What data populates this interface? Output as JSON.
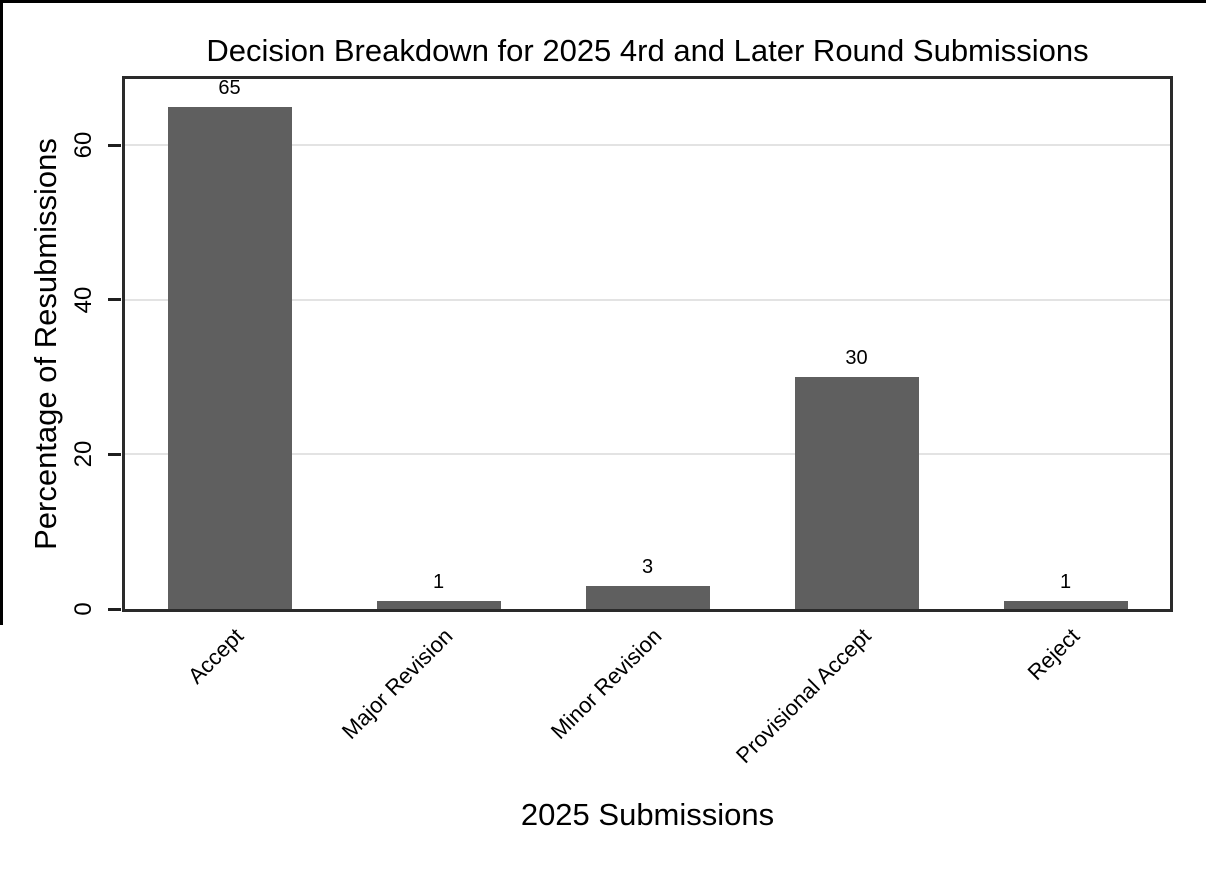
{
  "chart_data": {
    "type": "bar",
    "title": "Decision Breakdown for 2025 4rd and Later Round Submissions",
    "xlabel": "2025 Submissions",
    "ylabel": "Percentage of Resubmissions",
    "categories": [
      "Accept",
      "Major Revision",
      "Minor Revision",
      "Provisional Accept",
      "Reject"
    ],
    "values": [
      65,
      1,
      3,
      30,
      1
    ],
    "bar_labels": [
      "65",
      "1",
      "3",
      "30",
      "1"
    ],
    "yticks": [
      0,
      20,
      40,
      60
    ],
    "ylim": [
      0,
      68.6
    ],
    "grid": "horizontal-light",
    "legend": "none",
    "bar_color": "#5f5f5f",
    "gridline_color": "#e3e3e3",
    "frame_color": "#2a2a2a",
    "xtick_rotation_deg": 45,
    "ytick_rotation_deg": 90
  }
}
